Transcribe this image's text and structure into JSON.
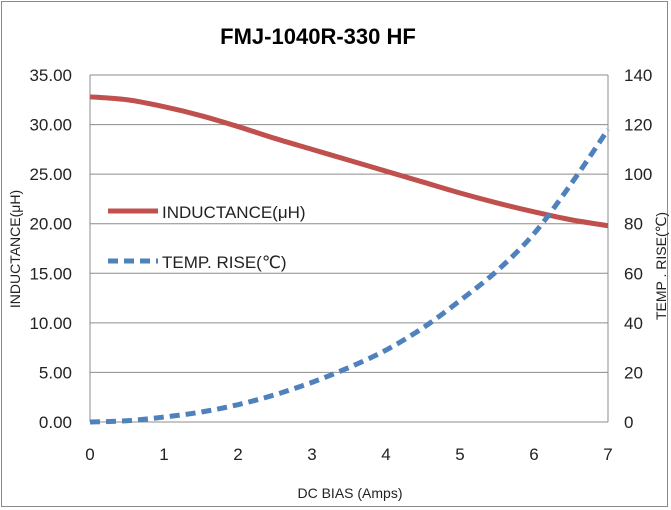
{
  "chart_data": {
    "type": "line",
    "title": "FMJ-1040R-330 HF",
    "xlabel": "DC BIAS  (Amps)",
    "ylabel": "INDUCTANCE(μH)",
    "y2label": "TEMP . RISE(℃)",
    "xlim": [
      0,
      7
    ],
    "ylim": [
      0,
      35
    ],
    "y2lim": [
      0,
      140
    ],
    "x_ticks": [
      "0",
      "1",
      "2",
      "3",
      "4",
      "5",
      "6",
      "7"
    ],
    "y_ticks": [
      "0.00",
      "5.00",
      "10.00",
      "15.00",
      "20.00",
      "25.00",
      "30.00",
      "35.00"
    ],
    "y2_ticks": [
      "0",
      "20",
      "40",
      "60",
      "80",
      "100",
      "120",
      "140"
    ],
    "grid": true,
    "legend_position": "left-middle",
    "series": [
      {
        "name": "INDUCTANCE(μH)",
        "axis": "left",
        "color": "#c0504d",
        "style": "solid",
        "x": [
          0,
          0.5,
          1,
          1.5,
          2,
          2.5,
          3,
          3.5,
          4,
          4.5,
          5,
          5.5,
          6,
          6.5,
          7
        ],
        "values": [
          32.8,
          32.5,
          31.8,
          30.9,
          29.8,
          28.6,
          27.5,
          26.4,
          25.3,
          24.2,
          23.1,
          22.1,
          21.2,
          20.4,
          19.8
        ]
      },
      {
        "name": "TEMP. RISE(℃)",
        "axis": "right",
        "color": "#4f81bd",
        "style": "dashed",
        "x": [
          0,
          0.5,
          1,
          1.5,
          2,
          2.5,
          3,
          3.5,
          4,
          4.5,
          5,
          5.5,
          6,
          6.5,
          7
        ],
        "values": [
          0,
          0.5,
          2,
          4,
          7,
          11,
          16,
          22,
          29,
          38,
          49,
          61,
          76,
          96,
          118
        ]
      }
    ]
  }
}
